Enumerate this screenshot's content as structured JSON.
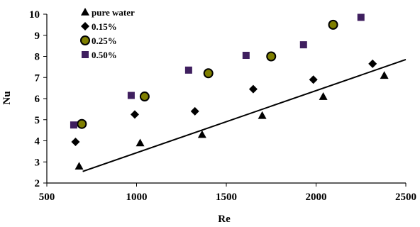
{
  "chart_data": {
    "type": "scatter",
    "xlabel": "Re",
    "ylabel": "Nu",
    "xlim": [
      500,
      2500
    ],
    "ylim": [
      2,
      10
    ],
    "xticks": [
      "500",
      "1000",
      "1500",
      "2000",
      "2500"
    ],
    "yticks": [
      "2",
      "3",
      "4",
      "5",
      "6",
      "7",
      "8",
      "9",
      "10"
    ],
    "grid": false,
    "legend_position": "top-left",
    "series": [
      {
        "name": "pure water",
        "marker": "triangle",
        "color": "#000000",
        "x": [
          680,
          1020,
          1365,
          1700,
          2040,
          2380
        ],
        "y": [
          2.8,
          3.9,
          4.3,
          5.2,
          6.1,
          7.1
        ]
      },
      {
        "name": "0.15%",
        "marker": "diamond",
        "color": "#000000",
        "x": [
          660,
          990,
          1325,
          1650,
          1985,
          2315
        ],
        "y": [
          3.95,
          5.25,
          5.4,
          6.45,
          6.9,
          7.65
        ]
      },
      {
        "name": "0.25%",
        "marker": "circle",
        "color": "#7f7f00",
        "edge_color": "#000000",
        "x": [
          695,
          1045,
          1400,
          1750,
          2095
        ],
        "y": [
          4.8,
          6.1,
          7.2,
          8.0,
          9.5
        ]
      },
      {
        "name": "0.50%",
        "marker": "square",
        "color": "#3f1f5f",
        "x": [
          650,
          970,
          1290,
          1610,
          1930,
          2250
        ],
        "y": [
          4.75,
          6.15,
          7.35,
          8.05,
          8.55,
          9.85
        ]
      }
    ],
    "trendline": {
      "x": [
        700,
        2500
      ],
      "y": [
        2.55,
        7.85
      ],
      "color": "#000000"
    }
  }
}
